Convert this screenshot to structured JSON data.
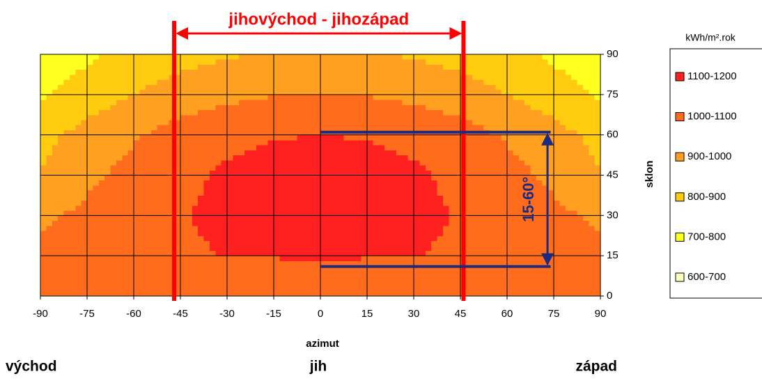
{
  "chart_data": {
    "type": "contour",
    "xlabel": "azimut",
    "ylabel": "sklon",
    "x": [
      -90,
      -75,
      -60,
      -45,
      -30,
      -15,
      0,
      15,
      30,
      45,
      60,
      75,
      90
    ],
    "y": [
      0,
      15,
      30,
      45,
      60,
      75,
      90
    ],
    "z": [
      [
        1050,
        1050,
        1050,
        1050,
        1050,
        1050,
        1050,
        1050,
        1050,
        1050,
        1050,
        1050,
        1050
      ],
      [
        1025,
        1045,
        1065,
        1085,
        1102,
        1103,
        1105,
        1103,
        1102,
        1085,
        1065,
        1045,
        1025
      ],
      [
        985,
        1020,
        1060,
        1095,
        1125,
        1137,
        1140,
        1137,
        1125,
        1095,
        1060,
        1020,
        985
      ],
      [
        905,
        980,
        1030,
        1075,
        1115,
        1135,
        1140,
        1135,
        1115,
        1075,
        1030,
        980,
        905
      ],
      [
        870,
        935,
        990,
        1040,
        1075,
        1095,
        1100,
        1095,
        1075,
        1040,
        990,
        935,
        870
      ],
      [
        790,
        850,
        900,
        945,
        975,
        995,
        1000,
        995,
        975,
        945,
        900,
        850,
        790
      ],
      [
        730,
        780,
        830,
        865,
        890,
        905,
        910,
        905,
        890,
        865,
        830,
        780,
        730
      ]
    ],
    "xlim": [
      -90,
      90
    ],
    "ylim": [
      0,
      90
    ],
    "xticks": [
      -90,
      -75,
      -60,
      -45,
      -30,
      -15,
      0,
      15,
      30,
      45,
      60,
      75,
      90
    ],
    "yticks": [
      0,
      15,
      30,
      45,
      60,
      75,
      90
    ],
    "grid": true,
    "legend_title": "kWh/m².rok",
    "bands": [
      {
        "label": "1100-1200",
        "min": 1100,
        "max": 1200,
        "color": "#ff2020"
      },
      {
        "label": "1000-1100",
        "min": 1000,
        "max": 1100,
        "color": "#ff6c1c"
      },
      {
        "label": "900-1000",
        "min": 900,
        "max": 1000,
        "color": "#ffa020"
      },
      {
        "label": "800-900",
        "min": 800,
        "max": 900,
        "color": "#ffcc10"
      },
      {
        "label": "700-800",
        "min": 700,
        "max": 800,
        "color": "#ffff20"
      },
      {
        "label": "600-700",
        "min": 600,
        "max": 700,
        "color": "#ffffc0"
      }
    ],
    "azimuth_annotation": {
      "text": "jihovýchod - jihozápad",
      "x_range": [
        -47,
        46
      ],
      "color": "#ff0000"
    },
    "tilt_annotation": {
      "text": "15-60°",
      "y_range": [
        11,
        61
      ],
      "x_range": [
        0,
        74
      ],
      "arrow_x": 73,
      "color": "#1c2a80"
    },
    "direction_labels": [
      "východ",
      "jih",
      "západ"
    ]
  }
}
